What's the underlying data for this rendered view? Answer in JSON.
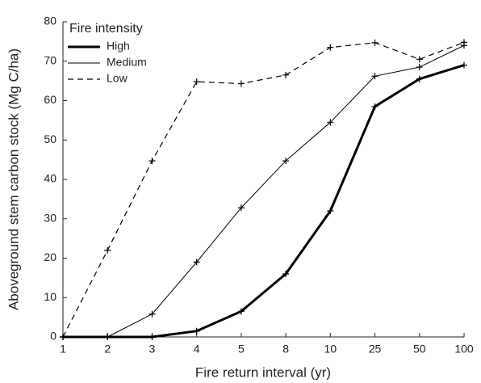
{
  "chart_data": {
    "type": "line",
    "y_label": "Aboveground stem carbon stock (Mg C/ha)",
    "x_label": "Fire return interval (yr)",
    "legend_title": "Fire intensity",
    "legend": "upper left",
    "categories": [
      "1",
      "2",
      "3",
      "4",
      "5",
      "8",
      "10",
      "25",
      "50",
      "100"
    ],
    "series": [
      {
        "name": "High",
        "color": "#000000",
        "line_width": 3,
        "dashed": false,
        "values": [
          0,
          0,
          0,
          1.5,
          6.5,
          16,
          32,
          58.5,
          65.5,
          69
        ]
      },
      {
        "name": "Medium",
        "color": "#000000",
        "line_width": 1,
        "dashed": false,
        "values": [
          0,
          0,
          5.8,
          19,
          32.8,
          44.7,
          54.5,
          66.2,
          68.5,
          74
        ]
      },
      {
        "name": "Low",
        "color": "#000000",
        "line_width": 1.2,
        "dashed": true,
        "values": [
          0,
          22,
          44.7,
          64.8,
          64.3,
          66.5,
          73.5,
          74.7,
          70.5,
          74.8
        ]
      }
    ],
    "ylim": [
      0,
      80
    ],
    "yticks": [
      0,
      10,
      20,
      30,
      40,
      50,
      60,
      70,
      80
    ],
    "grid": false
  }
}
